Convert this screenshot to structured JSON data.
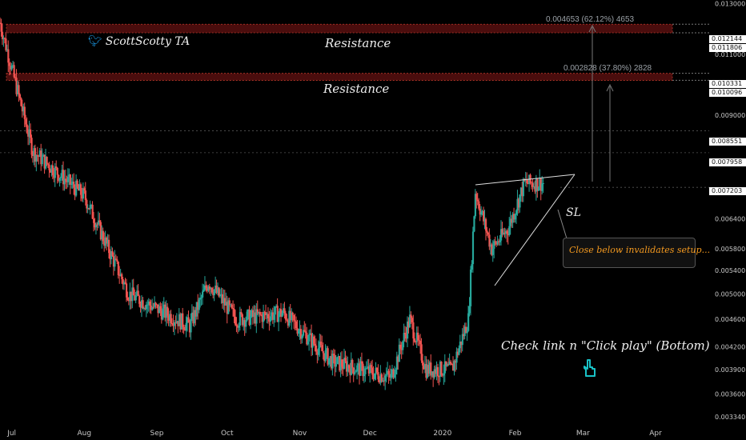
{
  "brand": {
    "text": "ScottScotty TA"
  },
  "annotations": {
    "resistance_upper": "Resistance",
    "resistance_lower": "Resistance",
    "stop_loss": "SL",
    "invalidation_note": "Close below invalidates setup...",
    "call_to_action": "Check link n \"Click play\" (Bottom)",
    "measure_upper": "0.004653 (62.12%) 4653",
    "measure_lower": "0.002828 (37.80%) 2828"
  },
  "price_tags": {
    "r1_top": "0.012144",
    "r1_bottom": "0.011806",
    "r2_top": "0.010331",
    "r2_bottom": "0.010096",
    "level_a": "0.008551",
    "level_b": "0.007958",
    "last_price": "0.007203"
  },
  "colors": {
    "up": "#26a69a",
    "down": "#ef5350",
    "resistance_fill": "#4a0d0d",
    "background": "#000000",
    "note_text": "#f59a1f",
    "hand_icon": "#19c2c6"
  },
  "icons": {
    "brand_icon": "twitter-bird-icon",
    "hand_icon": "pointing-hand-icon"
  },
  "chart_data": {
    "type": "candlestick",
    "y_scale": "log",
    "ylim": [
      0.00326,
      0.01315
    ],
    "x_tick_labels": [
      "Jul",
      "Aug",
      "Sep",
      "Oct",
      "Nov",
      "Dec",
      "2020",
      "Feb",
      "Mar",
      "Apr"
    ],
    "y_tick_labels": [
      "0.013000",
      "0.011000",
      "0.010000",
      "0.009000",
      "0.007000",
      "0.006400",
      "0.005800",
      "0.005400",
      "0.005000",
      "0.004600",
      "0.004200",
      "0.003900",
      "0.003600",
      "0.003340"
    ],
    "y_tick_values": [
      0.013,
      0.011,
      0.01,
      0.009,
      0.007,
      0.0064,
      0.0058,
      0.0054,
      0.005,
      0.0046,
      0.0042,
      0.0039,
      0.0036,
      0.00334
    ],
    "resistance_zones": [
      [
        0.011806,
        0.012144
      ],
      [
        0.010096,
        0.010331
      ]
    ],
    "levels": [
      0.008551,
      0.007958
    ],
    "stop_loss_level": 0.0071,
    "last_price": 0.007203,
    "trend_anchors": [
      {
        "x": "2019-06-26",
        "y": 0.0122
      },
      {
        "x": "2019-07-10",
        "y": 0.008
      },
      {
        "x": "2019-08-01",
        "y": 0.0069
      },
      {
        "x": "2019-08-20",
        "y": 0.005
      },
      {
        "x": "2019-09-15",
        "y": 0.0045
      },
      {
        "x": "2019-09-23",
        "y": 0.0052
      },
      {
        "x": "2019-10-05",
        "y": 0.0046
      },
      {
        "x": "2019-10-25",
        "y": 0.0047
      },
      {
        "x": "2019-11-15",
        "y": 0.004
      },
      {
        "x": "2019-12-10",
        "y": 0.0038
      },
      {
        "x": "2019-12-18",
        "y": 0.0046
      },
      {
        "x": "2019-12-25",
        "y": 0.0039
      },
      {
        "x": "2020-01-05",
        "y": 0.0039
      },
      {
        "x": "2020-01-12",
        "y": 0.0046
      },
      {
        "x": "2020-01-15",
        "y": 0.007
      },
      {
        "x": "2020-01-22",
        "y": 0.0058
      },
      {
        "x": "2020-01-29",
        "y": 0.0062
      },
      {
        "x": "2020-02-05",
        "y": 0.0072
      },
      {
        "x": "2020-02-13",
        "y": 0.0072
      }
    ],
    "x_domain": [
      "2019-06-26",
      "2020-04-15"
    ]
  }
}
